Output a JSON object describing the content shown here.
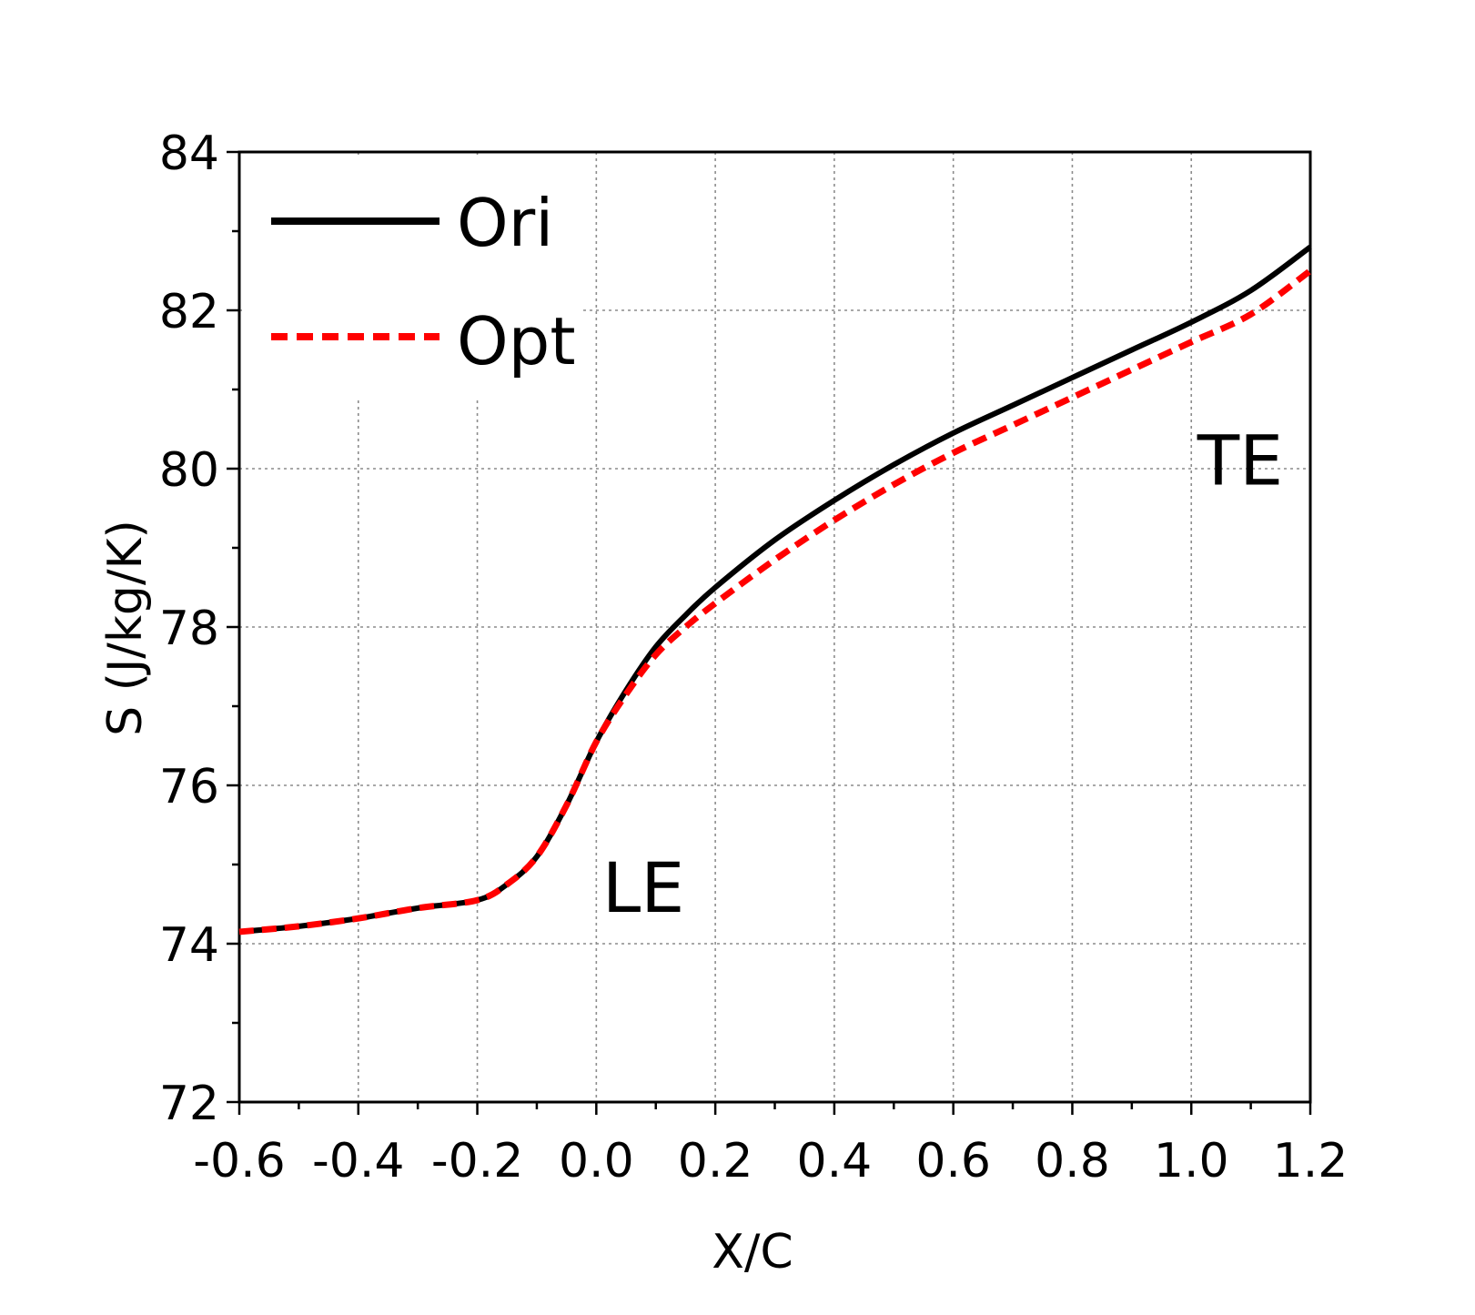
{
  "chart_data": {
    "type": "line",
    "xlabel": "X/C",
    "ylabel": "S (J/kg/K)",
    "xlim": [
      -0.6,
      1.2
    ],
    "ylim": [
      72,
      84
    ],
    "xticks": [
      "-0.6",
      "-0.4",
      "-0.2",
      "0.0",
      "0.2",
      "0.4",
      "0.6",
      "0.8",
      "1.0",
      "1.2"
    ],
    "yticks": [
      "72",
      "74",
      "76",
      "78",
      "80",
      "82",
      "84"
    ],
    "grid": true,
    "legend_position": "top-left",
    "annotations": [
      {
        "text": "LE",
        "x": 0.01,
        "y": 74.4
      },
      {
        "text": "TE",
        "x": 1.01,
        "y": 79.8
      }
    ],
    "series": [
      {
        "name": "Ori",
        "color": "#000000",
        "style": "solid",
        "x": [
          -0.6,
          -0.5,
          -0.4,
          -0.3,
          -0.2,
          -0.15,
          -0.1,
          -0.05,
          0.0,
          0.05,
          0.1,
          0.15,
          0.2,
          0.3,
          0.4,
          0.5,
          0.6,
          0.7,
          0.8,
          0.9,
          1.0,
          1.1,
          1.2
        ],
        "y": [
          74.15,
          74.22,
          74.32,
          74.45,
          74.55,
          74.75,
          75.1,
          75.75,
          76.55,
          77.2,
          77.75,
          78.15,
          78.5,
          79.1,
          79.6,
          80.05,
          80.45,
          80.8,
          81.15,
          81.5,
          81.85,
          82.25,
          82.8
        ]
      },
      {
        "name": "Opt",
        "color": "#ff0000",
        "style": "dashed",
        "x": [
          -0.6,
          -0.5,
          -0.4,
          -0.3,
          -0.2,
          -0.15,
          -0.1,
          -0.05,
          0.0,
          0.05,
          0.1,
          0.15,
          0.2,
          0.3,
          0.4,
          0.5,
          0.6,
          0.7,
          0.8,
          0.9,
          1.0,
          1.1,
          1.2
        ],
        "y": [
          74.15,
          74.22,
          74.32,
          74.45,
          74.55,
          74.75,
          75.1,
          75.75,
          76.55,
          77.15,
          77.65,
          78.0,
          78.3,
          78.85,
          79.35,
          79.8,
          80.2,
          80.55,
          80.9,
          81.25,
          81.6,
          81.95,
          82.5
        ]
      }
    ]
  }
}
